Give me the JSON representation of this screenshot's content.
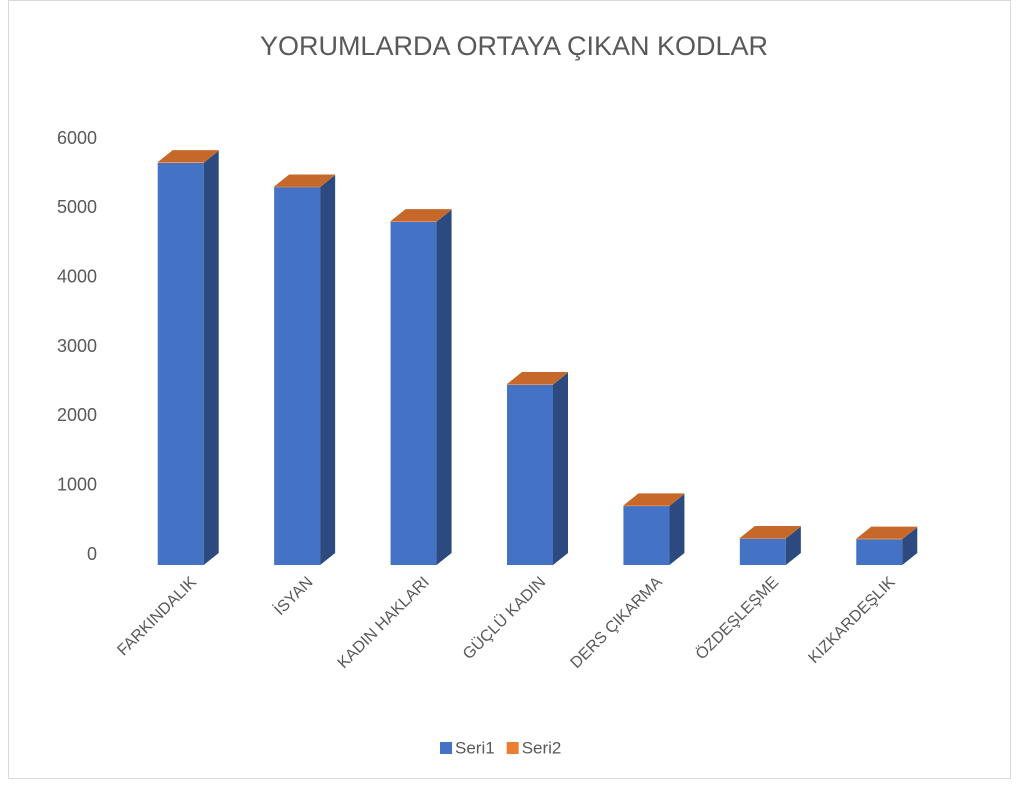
{
  "chart_data": {
    "type": "bar3d",
    "title": "YORUMLARDA ORTAYA ÇIKAN KODLAR",
    "categories": [
      "FARKINDALIK",
      "İSYAN",
      "KADIN HAKLARI",
      "GÜÇLÜ KADIN",
      "DERS ÇIKARMA",
      "ÖZDEŞLEŞME",
      "KIZKARDEŞLIK"
    ],
    "series": [
      {
        "name": "Seri1",
        "color": "#4472c4",
        "values": [
          5800,
          5450,
          4950,
          2600,
          850,
          380,
          370
        ]
      },
      {
        "name": "Seri2",
        "color": "#ed7d31",
        "values": [
          10,
          10,
          10,
          10,
          10,
          10,
          10
        ]
      }
    ],
    "ylim": [
      0,
      6000
    ],
    "yticks": [
      0,
      1000,
      2000,
      3000,
      4000,
      5000,
      6000
    ],
    "stacked": true,
    "legend": "bottom"
  }
}
